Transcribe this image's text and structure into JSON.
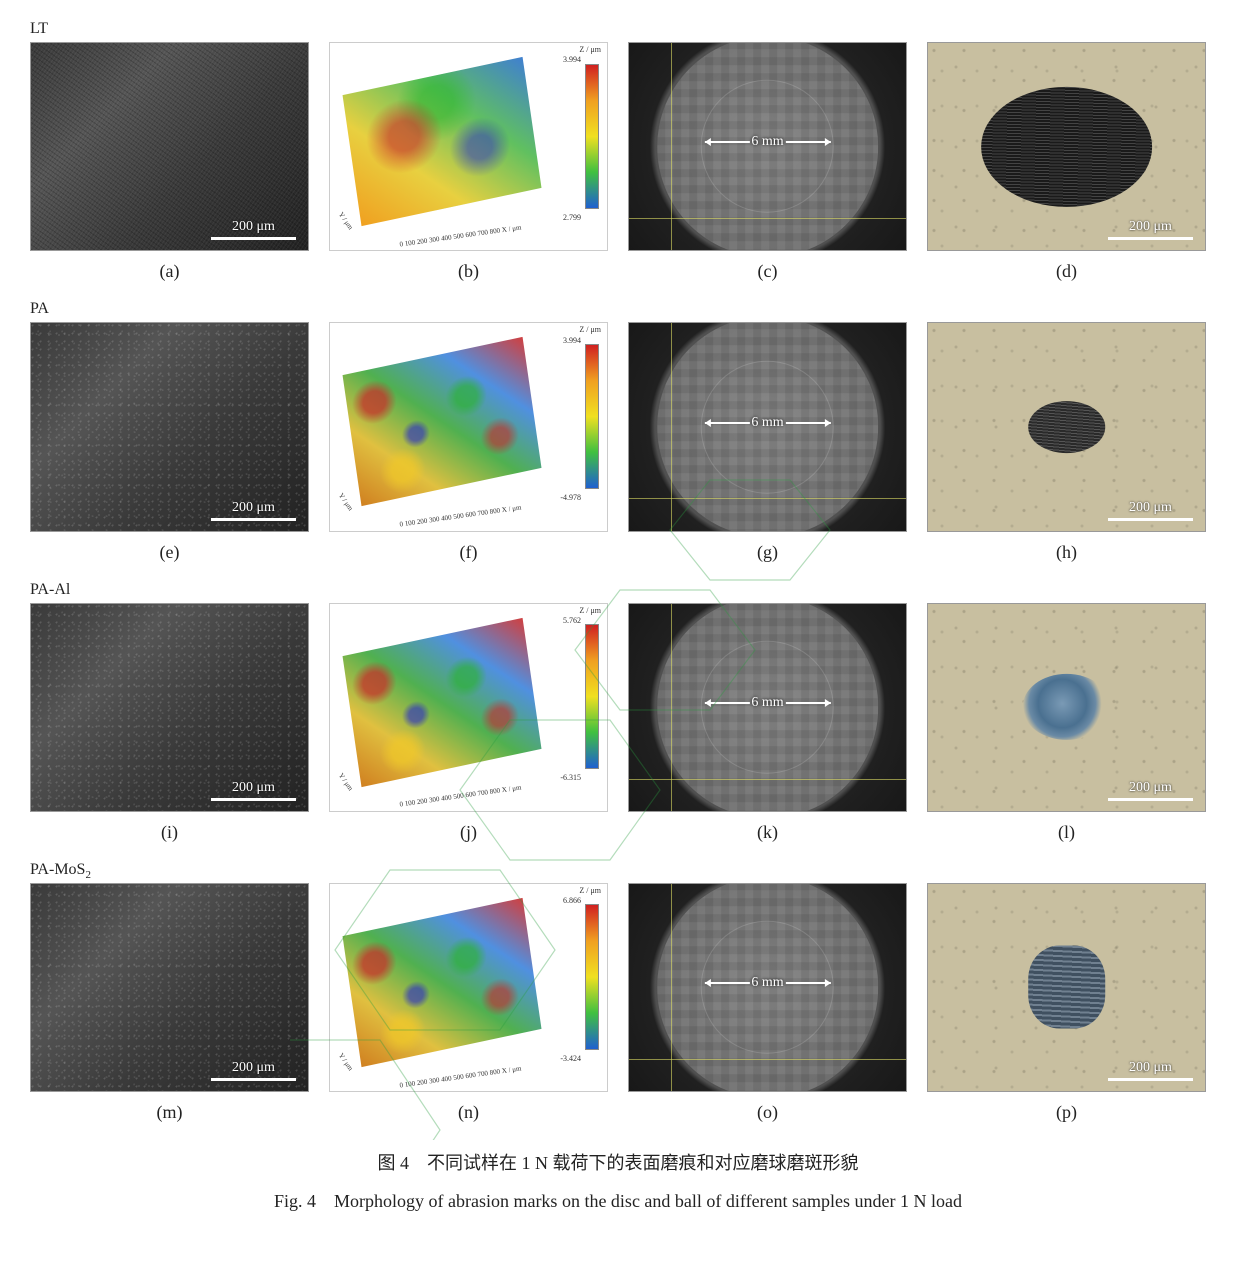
{
  "rows": [
    {
      "id": "LT",
      "label_html": "LT",
      "sem_class": "textured",
      "z_max": "3.994",
      "z_min": "2.799",
      "disc_dim": "6 mm",
      "wear_class": "wear-d",
      "sub_labels": [
        "(a)",
        "(b)",
        "(c)",
        "(d)"
      ]
    },
    {
      "id": "PA",
      "label_html": "PA",
      "sem_class": "grainy",
      "z_max": "3.994",
      "z_min": "-4.978",
      "disc_dim": "6 mm",
      "wear_class": "wear-h",
      "sub_labels": [
        "(e)",
        "(f)",
        "(g)",
        "(h)"
      ]
    },
    {
      "id": "PA-Al",
      "label_html": "PA-Al",
      "sem_class": "grainy",
      "z_max": "5.762",
      "z_min": "-6.315",
      "disc_dim": "6 mm",
      "wear_class": "wear-l",
      "sub_labels": [
        "(i)",
        "(j)",
        "(k)",
        "(l)"
      ]
    },
    {
      "id": "PA-MoS2",
      "label_html": "PA-MoS<sub>2</sub>",
      "sem_class": "grainy",
      "z_max": "6.866",
      "z_min": "-3.424",
      "disc_dim": "6 mm",
      "wear_class": "wear-p",
      "sub_labels": [
        "(m)",
        "(n)",
        "(o)",
        "(p)"
      ]
    }
  ],
  "scale_text": "200 μm",
  "colorbar_title": "Z / μm",
  "axis_x_label": "X / μm",
  "axis_y_label": "Y / μm",
  "axis_ticks": "0 100 200 300 400 500 600 700 800",
  "caption_cn": "图 4　不同试样在 1 N 载荷下的表面磨痕和对应磨球磨斑形貌",
  "caption_en": "Fig. 4　Morphology of abrasion marks on the disc and ball of different samples under 1 N load",
  "colors": {
    "background": "#ffffff",
    "text": "#222222",
    "scale_white": "#ffffff",
    "watermark_green": "#2a9d3f"
  },
  "fonts": {
    "caption_size_pt": 18,
    "label_size_pt": 18,
    "scale_size_pt": 14
  }
}
